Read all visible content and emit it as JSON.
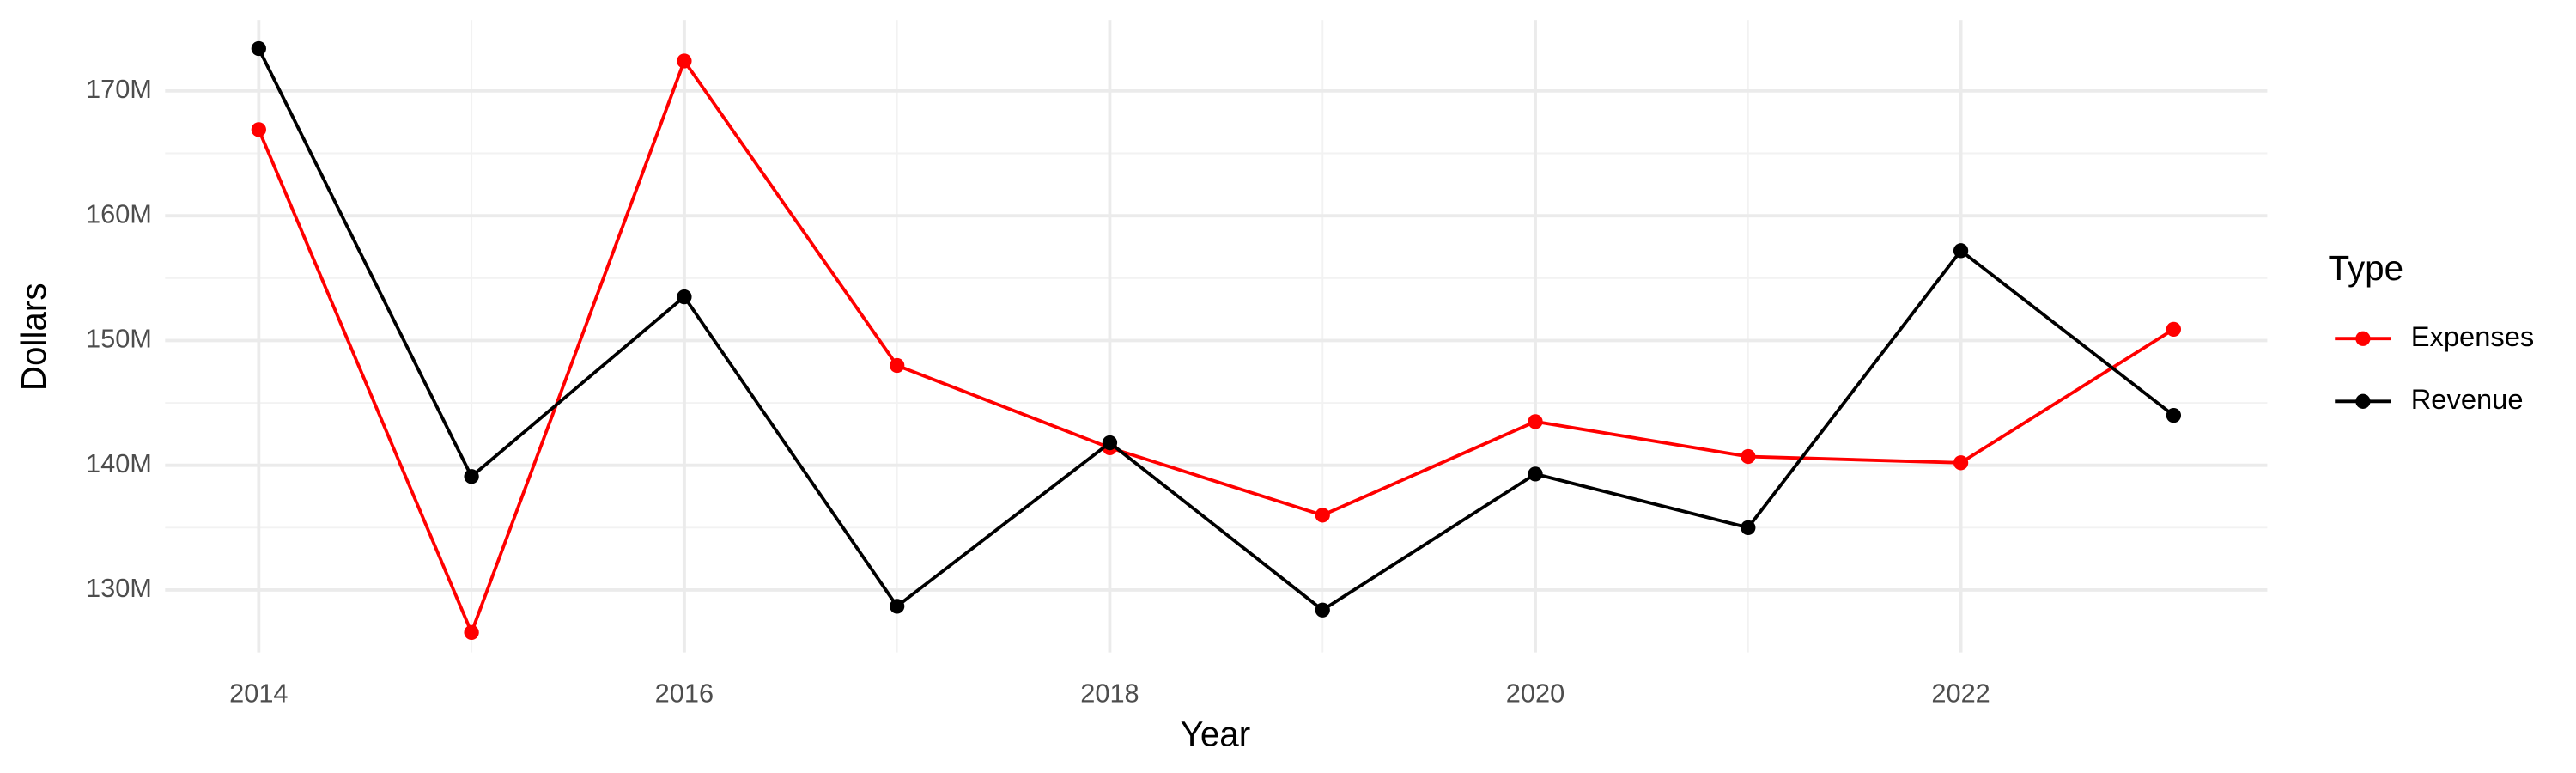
{
  "chart_data": {
    "type": "line",
    "x_label": "Year",
    "y_label": "Dollars",
    "legend_title": "Type",
    "legend_position": "right",
    "x": [
      2014,
      2015,
      2016,
      2017,
      2018,
      2019,
      2020,
      2021,
      2022,
      2023
    ],
    "series": [
      {
        "name": "Expenses",
        "color": "#ff0000",
        "values": [
          166900000,
          126600000,
          172400000,
          148000000,
          141400000,
          136000000,
          143500000,
          140700000,
          140200000,
          150900000
        ]
      },
      {
        "name": "Revenue",
        "color": "#000000",
        "values": [
          173400000,
          139100000,
          153500000,
          128700000,
          141800000,
          128400000,
          139300000,
          135000000,
          157200000,
          144000000
        ]
      }
    ],
    "xlim": [
      2013.56,
      2023.44
    ],
    "xticks": [
      2014,
      2016,
      2018,
      2020,
      2022
    ],
    "ylim": [
      125000000,
      175700000
    ],
    "yticks": [
      {
        "value": 130000000,
        "label": "130M"
      },
      {
        "value": 140000000,
        "label": "140M"
      },
      {
        "value": 150000000,
        "label": "150M"
      },
      {
        "value": 160000000,
        "label": "160M"
      },
      {
        "value": 170000000,
        "label": "170M"
      }
    ],
    "grid": true,
    "minor_grid": true
  }
}
